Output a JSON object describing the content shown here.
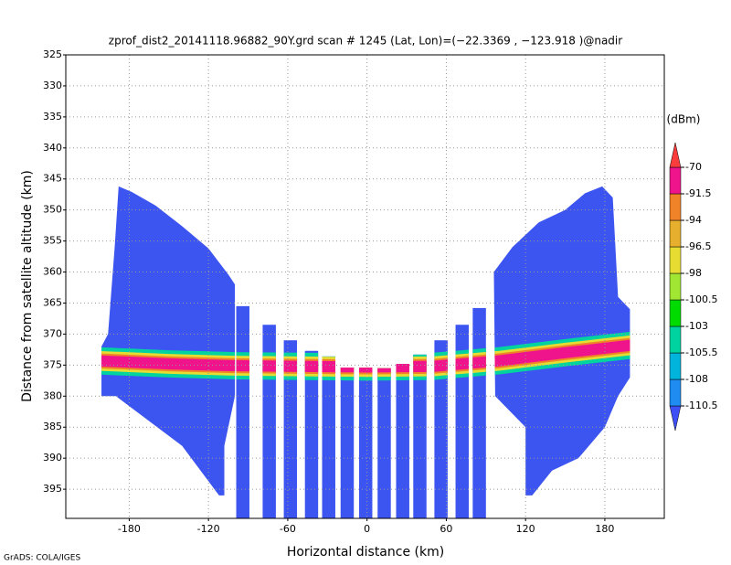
{
  "chart_data": {
    "type": "profile",
    "title": "zprof_dist2_20141118.96882_90Y.grd  scan # 1245  (Lat, Lon)=(−22.3369 , −123.918 )@nadir",
    "x_label": "Horizontal distance (km)",
    "y_label": "Distance from satellite altitude (km)",
    "footer": "GrADS: COLA/IGES",
    "xlim": [
      -228,
      225
    ],
    "xticks": [
      -180,
      -120,
      -60,
      0,
      60,
      120,
      180
    ],
    "ylim": [
      325,
      399.7
    ],
    "yticks": [
      325,
      330,
      335,
      340,
      345,
      350,
      355,
      360,
      365,
      370,
      375,
      380,
      385,
      390,
      395
    ],
    "y_inverted": true,
    "grid": true,
    "field_color": "#3c55f0",
    "swaths": [
      {
        "x": [
          -188,
          -178,
          -160,
          -140,
          -120,
          -105,
          -100,
          -100,
          -108,
          -108,
          -112,
          -140,
          -165,
          -190,
          -201,
          -201,
          -196,
          -191
        ],
        "y": [
          346.2,
          347.1,
          349.3,
          352.6,
          356.2,
          360.4,
          362,
          380,
          388,
          396,
          396,
          388,
          384,
          380,
          380,
          372,
          370,
          356
        ]
      },
      {
        "x": [
          178,
          186,
          190,
          199,
          199,
          190,
          180,
          160,
          140,
          125,
          120,
          120,
          97,
          96,
          110,
          130,
          150,
          165
        ],
        "y": [
          346.2,
          348,
          364,
          366,
          377,
          380,
          385,
          390,
          392,
          396,
          396,
          385,
          380,
          360,
          356,
          352,
          350,
          347.3
        ]
      }
    ],
    "strips": {
      "x": [
        -94,
        -74,
        -58,
        -42,
        -29,
        -15,
        -1,
        13,
        27,
        40,
        56,
        72,
        85
      ],
      "top": [
        365.5,
        368.5,
        371,
        372.7,
        373.6,
        375.4,
        375.4,
        375.5,
        374.8,
        373.3,
        371,
        368.5,
        365.8
      ],
      "bottom": [
        399.7,
        399.7,
        399.7,
        399.7,
        399.7,
        399.7,
        399.7,
        399.7,
        399.7,
        399.7,
        399.7,
        399.7,
        399.7
      ],
      "width": 10
    },
    "band": {
      "x": [
        -205,
        -150,
        -100,
        -50,
        0,
        50,
        100,
        150,
        200
      ],
      "y": [
        374.3,
        374.8,
        375.1,
        375.2,
        375.3,
        375.2,
        374.3,
        373,
        371.8
      ],
      "layers": [
        {
          "value": -105.5,
          "half": 2.2
        },
        {
          "value": -98,
          "half": 1.6
        },
        {
          "value": -94,
          "half": 1.2
        },
        {
          "value": -91.5,
          "half": 0.9
        }
      ]
    },
    "colorbar": {
      "unit": "(dBm)",
      "levels": [
        -110.5,
        -108,
        -105.5,
        -103,
        -100.5,
        -98,
        -96.5,
        -94,
        -91.5,
        -70
      ],
      "colors": [
        "#3c50f5",
        "#1e8cf0",
        "#00b4dc",
        "#00d2a0",
        "#00dc00",
        "#a0e632",
        "#e6dc32",
        "#e6af2d",
        "#f08228",
        "#f0148c",
        "#fa3c3c"
      ]
    }
  }
}
